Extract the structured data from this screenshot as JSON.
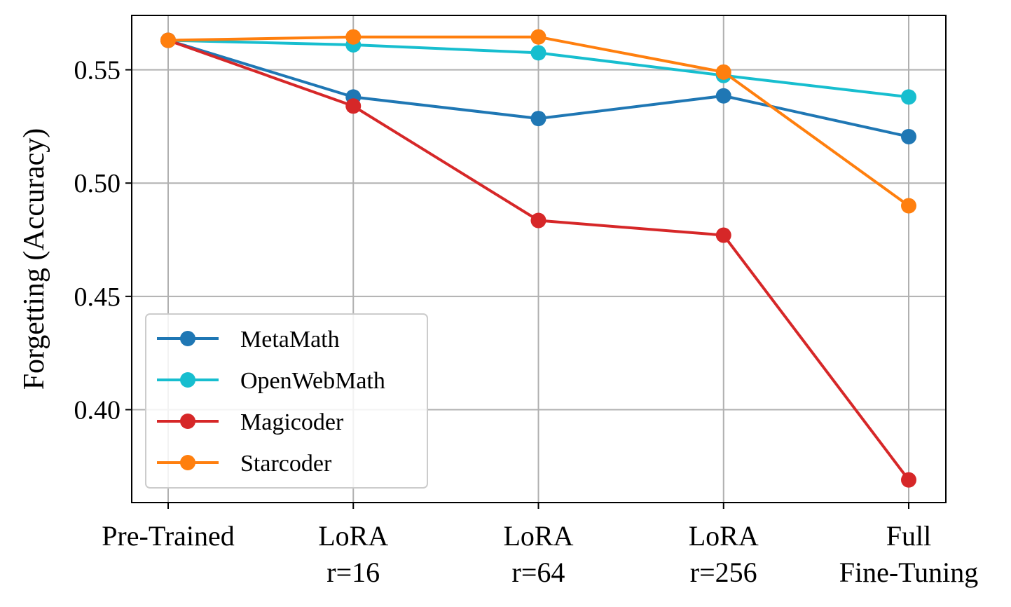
{
  "chart_data": {
    "type": "line",
    "title": "",
    "xlabel": "",
    "ylabel": "Forgetting (Accuracy)",
    "categories": [
      [
        "Pre-Trained"
      ],
      [
        "LoRA",
        "r=16"
      ],
      [
        "LoRA",
        "r=64"
      ],
      [
        "LoRA",
        "r=256"
      ],
      [
        "Full",
        "Fine-Tuning"
      ]
    ],
    "ylim": [
      0.359,
      0.574
    ],
    "yticks": [
      0.4,
      0.45,
      0.5,
      0.55
    ],
    "ytick_labels": [
      "0.40",
      "0.45",
      "0.50",
      "0.55"
    ],
    "grid": true,
    "legend_position": "lower-left",
    "series": [
      {
        "name": "MetaMath",
        "color": "#1f77b4",
        "values": [
          0.563,
          0.538,
          0.5285,
          0.5385,
          0.5205
        ]
      },
      {
        "name": "OpenWebMath",
        "color": "#17becf",
        "values": [
          0.563,
          0.561,
          0.5575,
          0.5475,
          0.538
        ]
      },
      {
        "name": "Magicoder",
        "color": "#d62728",
        "values": [
          0.563,
          0.534,
          0.4835,
          0.477,
          0.369
        ]
      },
      {
        "name": "Starcoder",
        "color": "#ff7f0e",
        "values": [
          0.563,
          0.5645,
          0.5645,
          0.549,
          0.49
        ]
      }
    ]
  }
}
